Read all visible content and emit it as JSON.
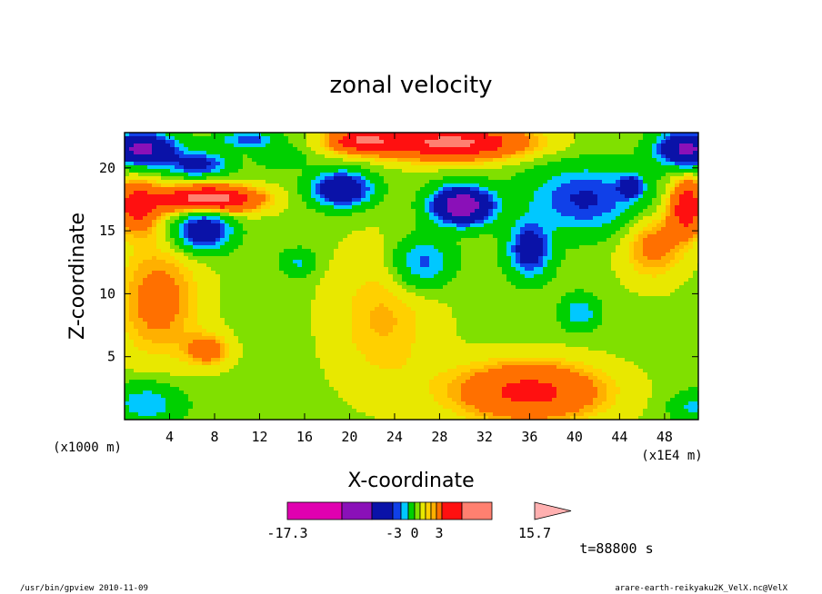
{
  "chart_data": {
    "type": "heatmap",
    "title": "zonal velocity",
    "xlabel": "X-coordinate",
    "ylabel": "Z-coordinate",
    "y_unit_label": "(x1000 m)",
    "x_unit_label": "(x1E4 m)",
    "xlim": [
      0,
      51
    ],
    "ylim": [
      0,
      22.8
    ],
    "x_ticks": [
      4,
      8,
      12,
      16,
      20,
      24,
      28,
      32,
      36,
      40,
      44,
      48
    ],
    "y_ticks": [
      5,
      10,
      15,
      20
    ],
    "time_label": "t=88800 s",
    "colorbar": {
      "tick_labels": [
        "-17.3",
        "-3",
        "0",
        "3",
        "15.7"
      ],
      "colors": [
        "#e000b0",
        "#8a10b8",
        "#0a12a8",
        "#1040e8",
        "#00c8ff",
        "#00d000",
        "#80e000",
        "#e8e800",
        "#ffd000",
        "#ffb000",
        "#ff7000",
        "#ff1010",
        "#ff8070",
        "#ffb0b0"
      ]
    },
    "field": {
      "base_value": 1.6,
      "blobs": [
        [
          1.5,
          21.5,
          3,
          1.2,
          -12
        ],
        [
          6.5,
          20.3,
          2.5,
          0.9,
          -7
        ],
        [
          11,
          22.2,
          2.5,
          0.7,
          -5
        ],
        [
          14,
          20.8,
          2,
          0.8,
          -2.5
        ],
        [
          19.3,
          18.3,
          2.5,
          1.3,
          -10
        ],
        [
          30,
          17,
          2.5,
          1.4,
          -15
        ],
        [
          36,
          13.5,
          1.8,
          2,
          -8
        ],
        [
          41,
          17.5,
          5,
          2.5,
          -6
        ],
        [
          45,
          18.5,
          1,
          0.8,
          -8
        ],
        [
          50,
          21.5,
          2.5,
          1.3,
          -12
        ],
        [
          7,
          15,
          2.3,
          1.5,
          -9
        ],
        [
          26.5,
          12.5,
          2.5,
          2,
          -5
        ],
        [
          40.5,
          8.5,
          1.5,
          1.3,
          -4
        ],
        [
          15.5,
          12.5,
          1.5,
          1,
          -3
        ],
        [
          2,
          1.3,
          3,
          1.6,
          -4
        ],
        [
          50.5,
          1,
          2,
          1.2,
          -3
        ],
        [
          29,
          22,
          7,
          1.4,
          7
        ],
        [
          21,
          22.2,
          3,
          1,
          5
        ],
        [
          7.5,
          17.5,
          4.5,
          1.1,
          8
        ],
        [
          1,
          17,
          2,
          2,
          5
        ],
        [
          50,
          17,
          1.5,
          2.2,
          6
        ],
        [
          47,
          14,
          3,
          3,
          3
        ],
        [
          36,
          2.2,
          7,
          2.5,
          5
        ],
        [
          3,
          9.5,
          4,
          5,
          3
        ],
        [
          7.5,
          5.5,
          2,
          1.3,
          3
        ],
        [
          23,
          8,
          5,
          6,
          2
        ]
      ]
    }
  },
  "footer": {
    "left": "/usr/bin/gpview   2010-11-09",
    "right": "arare-earth-reikyaku2K_VelX.nc@VelX"
  }
}
